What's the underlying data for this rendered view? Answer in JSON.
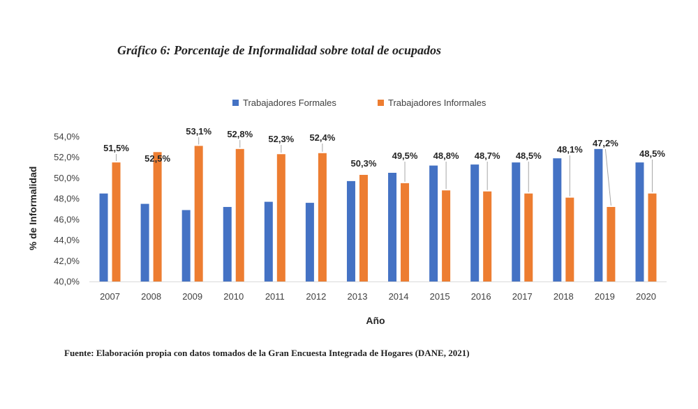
{
  "source": "Fuente: Elaboración propia con datos tomados de la Gran Encuesta Integrada de Hogares (DANE, 2021)",
  "chart_data": {
    "type": "bar",
    "title": "Gráfico 6: Porcentaje de Informalidad sobre total de ocupados",
    "xlabel": "Año",
    "ylabel": "% de Informalidad",
    "ylim": [
      40,
      54
    ],
    "yticks": [
      40,
      42,
      44,
      46,
      48,
      50,
      52,
      54
    ],
    "ytick_labels": [
      "40,0%",
      "42,0%",
      "44,0%",
      "46,0%",
      "48,0%",
      "50,0%",
      "52,0%",
      "54,0%"
    ],
    "legend_position": "top",
    "grid": false,
    "categories": [
      "2007",
      "2008",
      "2009",
      "2010",
      "2011",
      "2012",
      "2013",
      "2014",
      "2015",
      "2016",
      "2017",
      "2018",
      "2019",
      "2020"
    ],
    "series": [
      {
        "name": "Trabajadores Formales",
        "color": "#4472C4",
        "values": [
          48.5,
          47.5,
          46.9,
          47.2,
          47.7,
          47.6,
          49.7,
          50.5,
          51.2,
          51.3,
          51.5,
          51.9,
          52.8,
          51.5
        ]
      },
      {
        "name": "Trabajadores Informales",
        "color": "#ED7D31",
        "values": [
          51.5,
          52.5,
          53.1,
          52.8,
          52.3,
          52.4,
          50.3,
          49.5,
          48.8,
          48.7,
          48.5,
          48.1,
          47.2,
          48.5
        ]
      }
    ],
    "data_labels": {
      "series": "Trabajadores Informales",
      "labels": [
        "51,5%",
        "52,5%",
        "53,1%",
        "52,8%",
        "52,3%",
        "52,4%",
        "50,3%",
        "49,5%",
        "48,8%",
        "48,7%",
        "48,5%",
        "48,1%",
        "47,2%",
        "48,5%"
      ]
    }
  }
}
